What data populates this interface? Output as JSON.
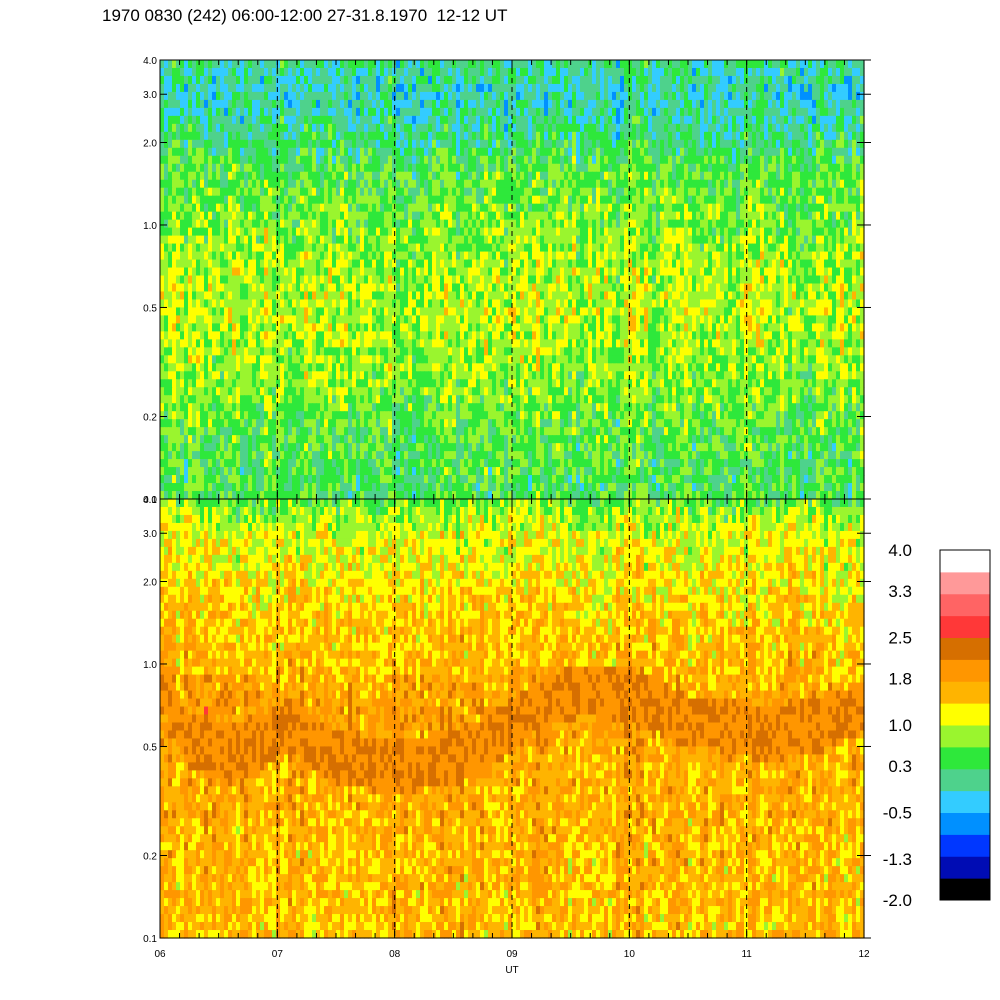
{
  "title": "1970 0830 (242) 06:00-12:00 27-31.8.1970  12-12 UT",
  "chart_data": {
    "type": "heatmap",
    "panels": [
      {
        "name": "upper",
        "x_range": [
          6,
          12
        ],
        "y_range": [
          0.1,
          4.0
        ],
        "y_scale": "log",
        "y_ticks": [
          "4.0",
          "3.0",
          "2.0",
          "1.0",
          "0.5",
          "0.2",
          "0.1"
        ],
        "profile": {
          "y": [
            0.1,
            0.15,
            0.2,
            0.3,
            0.5,
            0.7,
            1.0,
            1.5,
            2.0,
            3.0,
            4.0
          ],
          "level": [
            0.35,
            0.45,
            0.55,
            0.8,
            0.95,
            0.85,
            0.7,
            0.5,
            0.2,
            -0.1,
            0.1
          ]
        }
      },
      {
        "name": "lower",
        "x_range": [
          6,
          12
        ],
        "y_range": [
          0.1,
          4.0
        ],
        "y_scale": "log",
        "y_ticks": [
          "4.0",
          "3.0",
          "2.0",
          "1.0",
          "0.5",
          "0.2",
          "0.1"
        ],
        "profile": {
          "y": [
            0.1,
            0.15,
            0.2,
            0.3,
            0.5,
            0.7,
            1.0,
            1.5,
            2.0,
            3.0,
            4.0
          ],
          "level": [
            1.55,
            1.6,
            1.6,
            1.65,
            1.75,
            1.85,
            1.6,
            1.45,
            1.3,
            1.1,
            0.6
          ]
        },
        "band": {
          "points": [
            [
              6.0,
              0.9
            ],
            [
              6.2,
              0.55
            ],
            [
              6.6,
              0.45
            ],
            [
              7.1,
              0.6
            ],
            [
              7.5,
              0.45
            ],
            [
              8.0,
              0.42
            ],
            [
              8.5,
              0.45
            ],
            [
              8.9,
              0.55
            ],
            [
              9.2,
              0.7
            ],
            [
              9.6,
              0.8
            ],
            [
              10.0,
              0.78
            ],
            [
              10.5,
              0.62
            ],
            [
              10.8,
              0.6
            ],
            [
              11.2,
              0.55
            ],
            [
              11.6,
              0.6
            ],
            [
              12.0,
              0.7
            ]
          ],
          "level": 2.1
        }
      }
    ],
    "x_ticks": [
      "06",
      "07",
      "08",
      "09",
      "10",
      "11",
      "12"
    ],
    "x_tick_values": [
      6,
      7,
      8,
      9,
      10,
      11,
      12
    ],
    "xlabel": "UT",
    "dashed_lines_x": [
      7,
      8,
      9,
      10,
      11
    ],
    "colorbar": {
      "labels": [
        "4.0",
        "3.3",
        "2.5",
        "1.8",
        "1.0",
        "0.3",
        "-0.5",
        "-1.3",
        "-2.0"
      ],
      "label_values": [
        4.0,
        3.3,
        2.5,
        1.8,
        1.0,
        0.3,
        -0.5,
        -1.3,
        -2.0
      ],
      "range": [
        -2.0,
        4.0
      ],
      "colors": [
        "#000000",
        "#000cb4",
        "#0037ff",
        "#0090ff",
        "#33ccff",
        "#4ed28c",
        "#2ee83b",
        "#9af52e",
        "#ffff00",
        "#ffb400",
        "#ff9600",
        "#d66f00",
        "#ff3838",
        "#ff6464",
        "#ff9999",
        "#ffffff"
      ]
    }
  }
}
